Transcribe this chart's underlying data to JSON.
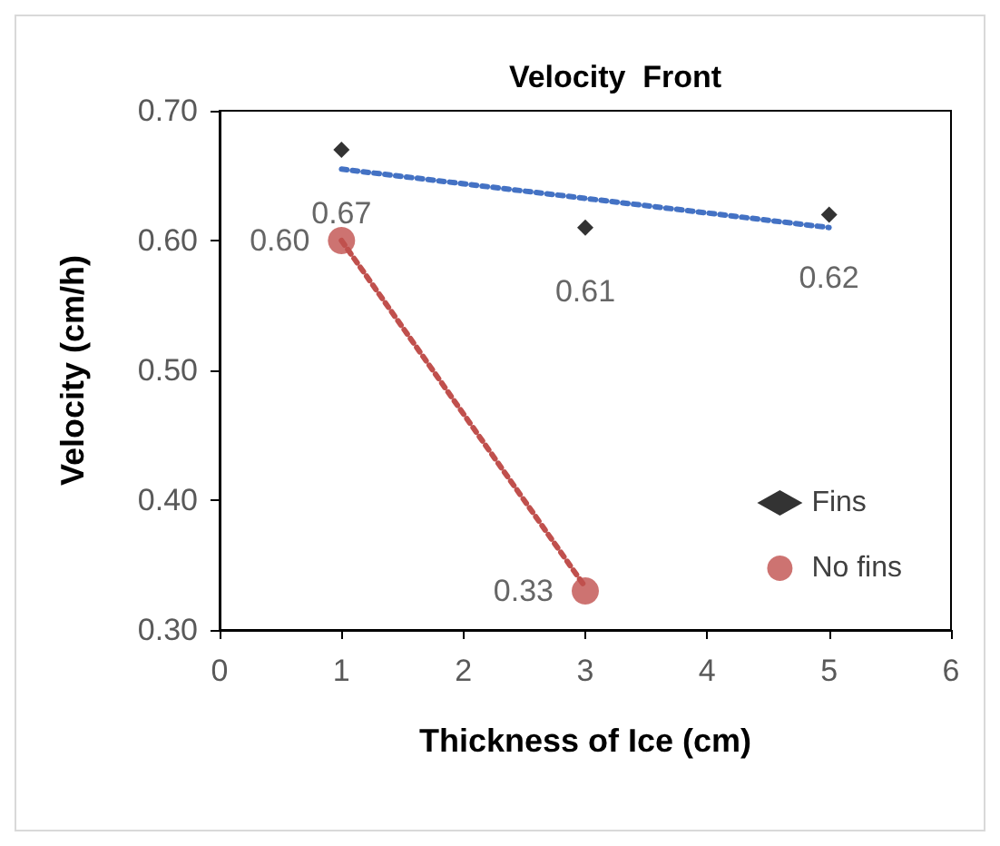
{
  "chart_data": {
    "type": "scatter",
    "title": "Velocity  Front",
    "xlabel": "Thickness of Ice (cm)",
    "ylabel": "Velocity (cm/h)",
    "xlim": [
      0,
      6
    ],
    "xticks": [
      0,
      1,
      2,
      3,
      4,
      5,
      6
    ],
    "ylim": [
      0.3,
      0.7
    ],
    "yticks": [
      {
        "value": 0.3,
        "label": "0.30"
      },
      {
        "value": 0.4,
        "label": "0.40"
      },
      {
        "value": 0.5,
        "label": "0.50"
      },
      {
        "value": 0.6,
        "label": "0.60"
      },
      {
        "value": 0.7,
        "label": "0.70"
      }
    ],
    "grid": false,
    "legend": "right",
    "series": [
      {
        "name": "Fins",
        "color": "#000000",
        "marker": "diamond",
        "x": [
          1,
          3,
          5
        ],
        "values": [
          0.67,
          0.61,
          0.62
        ],
        "value_labels": [
          "0.67",
          "0.61",
          "0.62"
        ]
      },
      {
        "name": "No fins",
        "color": "#c0504d",
        "marker": "circle",
        "x": [
          1,
          3
        ],
        "values": [
          0.6,
          0.33
        ],
        "value_labels": [
          "0.60",
          "0.33"
        ]
      },
      {
        "type": "line",
        "color": "#4472c4",
        "line_style": "dotted",
        "marker": "none",
        "x": [
          1,
          5
        ],
        "values": [
          0.655,
          0.61
        ]
      },
      {
        "type": "line",
        "color": "#c0504d",
        "line_style": "dotted",
        "marker": "none",
        "x": [
          1,
          3
        ],
        "values": [
          0.6,
          0.333
        ]
      }
    ]
  }
}
